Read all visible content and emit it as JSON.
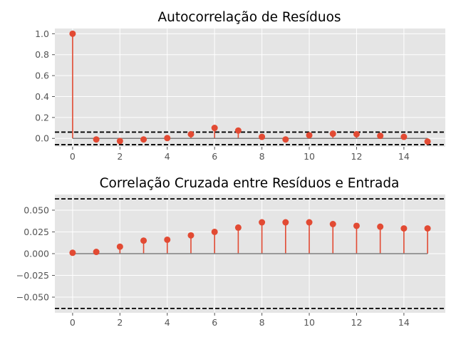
{
  "chart_data": [
    {
      "type": "stem",
      "title": "Autocorrelação de Resíduos",
      "xlabel": "",
      "ylabel": "",
      "x": [
        0,
        1,
        2,
        3,
        4,
        5,
        6,
        7,
        8,
        9,
        10,
        11,
        12,
        13,
        14,
        15
      ],
      "values": [
        1.0,
        -0.01,
        -0.025,
        -0.01,
        0.003,
        0.04,
        0.1,
        0.075,
        0.015,
        -0.01,
        0.03,
        0.045,
        0.04,
        0.025,
        0.015,
        -0.03
      ],
      "confidence_bounds": [
        -0.06,
        0.06
      ],
      "xlim": [
        -0.75,
        15.75
      ],
      "ylim": [
        -0.08,
        1.05
      ],
      "xticks": [
        "0",
        "2",
        "4",
        "6",
        "8",
        "10",
        "12",
        "14"
      ],
      "xtick_values": [
        0,
        2,
        4,
        6,
        8,
        10,
        12,
        14
      ],
      "yticks": [
        "0.0",
        "0.2",
        "0.4",
        "0.6",
        "0.8",
        "1.0"
      ],
      "ytick_values": [
        0.0,
        0.2,
        0.4,
        0.6,
        0.8,
        1.0
      ],
      "grid": true,
      "colors": {
        "stem": "#e24a33",
        "baseline": "#808080",
        "bounds": "#000000",
        "background": "#e5e5e5"
      }
    },
    {
      "type": "stem",
      "title": "Correlação Cruzada entre Resíduos e Entrada",
      "xlabel": "",
      "ylabel": "",
      "x": [
        0,
        1,
        2,
        3,
        4,
        5,
        6,
        7,
        8,
        9,
        10,
        11,
        12,
        13,
        14,
        15
      ],
      "values": [
        0.001,
        0.002,
        0.008,
        0.015,
        0.016,
        0.021,
        0.025,
        0.03,
        0.036,
        0.036,
        0.036,
        0.034,
        0.032,
        0.031,
        0.029,
        0.029
      ],
      "confidence_bounds": [
        -0.063,
        0.063
      ],
      "xlim": [
        -0.75,
        15.75
      ],
      "ylim": [
        -0.068,
        0.068
      ],
      "xticks": [
        "0",
        "2",
        "4",
        "6",
        "8",
        "10",
        "12",
        "14"
      ],
      "xtick_values": [
        0,
        2,
        4,
        6,
        8,
        10,
        12,
        14
      ],
      "yticks": [
        "−0.050",
        "−0.025",
        "0.000",
        "0.025",
        "0.050"
      ],
      "ytick_values": [
        -0.05,
        -0.025,
        0.0,
        0.025,
        0.05
      ],
      "grid": true,
      "colors": {
        "stem": "#e24a33",
        "baseline": "#808080",
        "bounds": "#000000",
        "background": "#e5e5e5"
      }
    }
  ]
}
